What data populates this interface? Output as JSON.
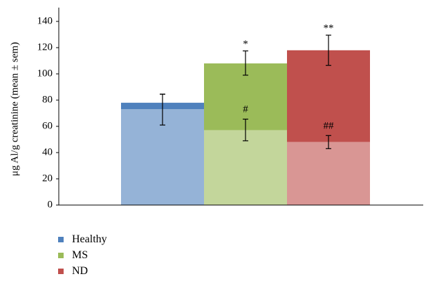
{
  "chart_data": {
    "type": "bar",
    "stacked": true,
    "title": "",
    "xlabel": "",
    "ylabel": "μg Al/g creatinine (mean ± sem)",
    "ylim": [
      0,
      140
    ],
    "yticks": [
      0,
      20,
      40,
      60,
      80,
      100,
      120,
      140
    ],
    "grid": false,
    "legend_position": "bottom-left",
    "groups": [
      {
        "name": "Healthy",
        "color": "#4f81bd",
        "total": 78,
        "total_error": [
          84.5,
          84.5
        ],
        "total_annotation": "",
        "lower": 73,
        "lower_color": "#95b3d7",
        "lower_error": [
          61,
          84.5
        ],
        "lower_annotation": ""
      },
      {
        "name": "MS",
        "color": "#9bbb59",
        "total": 108,
        "total_error": [
          99,
          117.5
        ],
        "total_annotation": "*",
        "lower": 57,
        "lower_color": "#c3d69b",
        "lower_error": [
          49,
          65.5
        ],
        "lower_annotation": "#"
      },
      {
        "name": "ND",
        "color": "#c0504d",
        "total": 118,
        "total_error": [
          106.5,
          129.5
        ],
        "total_annotation": "**",
        "lower": 48,
        "lower_color": "#d99694",
        "lower_error": [
          43,
          53
        ],
        "lower_annotation": "##"
      }
    ]
  },
  "legend": [
    {
      "label": "Healthy",
      "color": "#4f81bd"
    },
    {
      "label": "MS",
      "color": "#9bbb59"
    },
    {
      "label": "ND",
      "color": "#c0504d"
    }
  ]
}
